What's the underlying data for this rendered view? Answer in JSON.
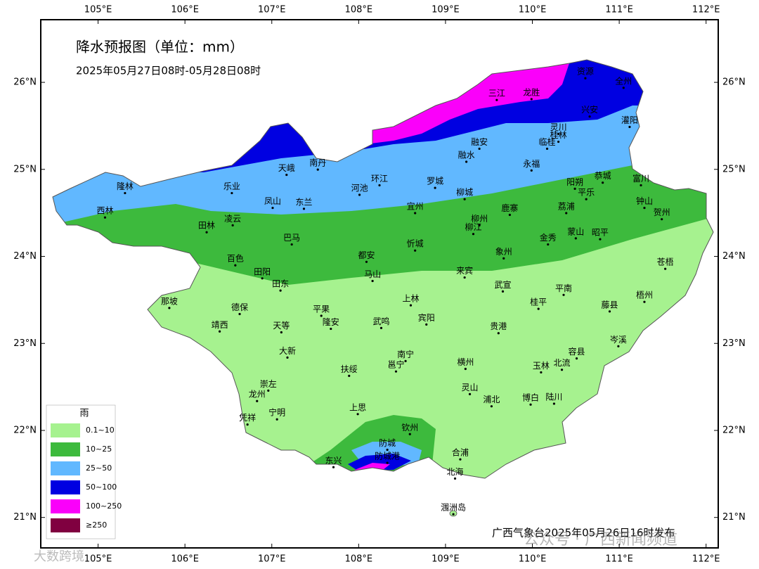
{
  "header": {
    "title": "降水预报图（单位：mm）",
    "subtitle": "2025年05月27日08时-05月28日08时"
  },
  "axes": {
    "xlim": [
      104.34,
      112.14
    ],
    "ylim": [
      20.65,
      26.72
    ],
    "xticks": [
      {
        "value": 105,
        "label": "105°E"
      },
      {
        "value": 106,
        "label": "106°E"
      },
      {
        "value": 107,
        "label": "107°E"
      },
      {
        "value": 108,
        "label": "108°E"
      },
      {
        "value": 109,
        "label": "109°E"
      },
      {
        "value": 110,
        "label": "110°E"
      },
      {
        "value": 111,
        "label": "111°E"
      },
      {
        "value": 112,
        "label": "112°E"
      }
    ],
    "yticks": [
      {
        "value": 21,
        "label": "21°N"
      },
      {
        "value": 22,
        "label": "22°N"
      },
      {
        "value": 23,
        "label": "23°N"
      },
      {
        "value": 24,
        "label": "24°N"
      },
      {
        "value": 25,
        "label": "25°N"
      },
      {
        "value": 26,
        "label": "26°N"
      }
    ]
  },
  "cities": [
    {
      "name": "隆林",
      "lon": 105.31,
      "lat": 24.8
    },
    {
      "name": "西林",
      "lon": 105.08,
      "lat": 24.52
    },
    {
      "name": "乐业",
      "lon": 106.54,
      "lat": 24.8
    },
    {
      "name": "天峨",
      "lon": 107.17,
      "lat": 25.01
    },
    {
      "name": "南丹",
      "lon": 107.53,
      "lat": 25.07
    },
    {
      "name": "凤山",
      "lon": 107.01,
      "lat": 24.63
    },
    {
      "name": "东兰",
      "lon": 107.37,
      "lat": 24.62
    },
    {
      "name": "河池",
      "lon": 108.01,
      "lat": 24.78
    },
    {
      "name": "环江",
      "lon": 108.24,
      "lat": 24.89
    },
    {
      "name": "罗城",
      "lon": 108.88,
      "lat": 24.86
    },
    {
      "name": "融安",
      "lon": 109.39,
      "lat": 25.31
    },
    {
      "name": "融水",
      "lon": 109.24,
      "lat": 25.16
    },
    {
      "name": "三江",
      "lon": 109.59,
      "lat": 25.87
    },
    {
      "name": "龙胜",
      "lon": 109.99,
      "lat": 25.88
    },
    {
      "name": "资源",
      "lon": 110.61,
      "lat": 26.12
    },
    {
      "name": "全州",
      "lon": 111.05,
      "lat": 26.01
    },
    {
      "name": "兴安",
      "lon": 110.66,
      "lat": 25.68
    },
    {
      "name": "灵川",
      "lon": 110.3,
      "lat": 25.48
    },
    {
      "name": "桂林",
      "lon": 110.3,
      "lat": 25.39
    },
    {
      "name": "临桂",
      "lon": 110.17,
      "lat": 25.31
    },
    {
      "name": "灌阳",
      "lon": 111.12,
      "lat": 25.56
    },
    {
      "name": "永福",
      "lon": 109.99,
      "lat": 25.06
    },
    {
      "name": "柳城",
      "lon": 109.22,
      "lat": 24.73
    },
    {
      "name": "宜州",
      "lon": 108.65,
      "lat": 24.57
    },
    {
      "name": "阳朔",
      "lon": 110.49,
      "lat": 24.85
    },
    {
      "name": "恭城",
      "lon": 110.81,
      "lat": 24.92
    },
    {
      "name": "平乐",
      "lon": 110.62,
      "lat": 24.73
    },
    {
      "name": "富川",
      "lon": 111.25,
      "lat": 24.89
    },
    {
      "name": "钟山",
      "lon": 111.29,
      "lat": 24.63
    },
    {
      "name": "荔浦",
      "lon": 110.39,
      "lat": 24.57
    },
    {
      "name": "贺州",
      "lon": 111.49,
      "lat": 24.5
    },
    {
      "name": "鹿寨",
      "lon": 109.74,
      "lat": 24.55
    },
    {
      "name": "柳州",
      "lon": 109.39,
      "lat": 24.43
    },
    {
      "name": "柳江",
      "lon": 109.32,
      "lat": 24.33
    },
    {
      "name": "金秀",
      "lon": 110.18,
      "lat": 24.21
    },
    {
      "name": "蒙山",
      "lon": 110.5,
      "lat": 24.28
    },
    {
      "name": "昭平",
      "lon": 110.78,
      "lat": 24.27
    },
    {
      "name": "田林",
      "lon": 106.25,
      "lat": 24.35
    },
    {
      "name": "凌云",
      "lon": 106.55,
      "lat": 24.43
    },
    {
      "name": "巴马",
      "lon": 107.23,
      "lat": 24.21
    },
    {
      "name": "都安",
      "lon": 108.09,
      "lat": 24.01
    },
    {
      "name": "忻城",
      "lon": 108.65,
      "lat": 24.14
    },
    {
      "name": "象州",
      "lon": 109.67,
      "lat": 24.05
    },
    {
      "name": "百色",
      "lon": 106.58,
      "lat": 23.97
    },
    {
      "name": "田阳",
      "lon": 106.89,
      "lat": 23.82
    },
    {
      "name": "田东",
      "lon": 107.1,
      "lat": 23.68
    },
    {
      "name": "马山",
      "lon": 108.16,
      "lat": 23.79
    },
    {
      "name": "来宾",
      "lon": 109.22,
      "lat": 23.83
    },
    {
      "name": "武宣",
      "lon": 109.66,
      "lat": 23.67
    },
    {
      "name": "平南",
      "lon": 110.36,
      "lat": 23.63
    },
    {
      "name": "苍梧",
      "lon": 111.53,
      "lat": 23.93
    },
    {
      "name": "梧州",
      "lon": 111.29,
      "lat": 23.55
    },
    {
      "name": "藤县",
      "lon": 110.89,
      "lat": 23.44
    },
    {
      "name": "那坡",
      "lon": 105.82,
      "lat": 23.48
    },
    {
      "name": "德保",
      "lon": 106.63,
      "lat": 23.41
    },
    {
      "name": "靖西",
      "lon": 106.4,
      "lat": 23.21
    },
    {
      "name": "天等",
      "lon": 107.11,
      "lat": 23.2
    },
    {
      "name": "平果",
      "lon": 107.57,
      "lat": 23.39
    },
    {
      "name": "隆安",
      "lon": 107.68,
      "lat": 23.24
    },
    {
      "name": "上林",
      "lon": 108.6,
      "lat": 23.51
    },
    {
      "name": "武鸣",
      "lon": 108.26,
      "lat": 23.25
    },
    {
      "name": "宾阳",
      "lon": 108.78,
      "lat": 23.29
    },
    {
      "name": "桂平",
      "lon": 110.07,
      "lat": 23.47
    },
    {
      "name": "贵港",
      "lon": 109.61,
      "lat": 23.19
    },
    {
      "name": "岑溪",
      "lon": 110.99,
      "lat": 23.04
    },
    {
      "name": "大新",
      "lon": 107.18,
      "lat": 22.91
    },
    {
      "name": "南宁",
      "lon": 108.54,
      "lat": 22.87
    },
    {
      "name": "邕宁",
      "lon": 108.43,
      "lat": 22.75
    },
    {
      "name": "扶绥",
      "lon": 107.89,
      "lat": 22.7
    },
    {
      "name": "横州",
      "lon": 109.23,
      "lat": 22.78
    },
    {
      "name": "玉林",
      "lon": 110.1,
      "lat": 22.74
    },
    {
      "name": "北流",
      "lon": 110.34,
      "lat": 22.77
    },
    {
      "name": "容县",
      "lon": 110.51,
      "lat": 22.9
    },
    {
      "name": "崇左",
      "lon": 106.96,
      "lat": 22.53
    },
    {
      "name": "龙州",
      "lon": 106.83,
      "lat": 22.41
    },
    {
      "name": "宁明",
      "lon": 107.06,
      "lat": 22.2
    },
    {
      "name": "凭祥",
      "lon": 106.72,
      "lat": 22.14
    },
    {
      "name": "灵山",
      "lon": 109.28,
      "lat": 22.49
    },
    {
      "name": "浦北",
      "lon": 109.53,
      "lat": 22.35
    },
    {
      "name": "博白",
      "lon": 109.98,
      "lat": 22.37
    },
    {
      "name": "陆川",
      "lon": 110.25,
      "lat": 22.38
    },
    {
      "name": "上思",
      "lon": 107.99,
      "lat": 22.26
    },
    {
      "name": "钦州",
      "lon": 108.59,
      "lat": 22.03
    },
    {
      "name": "防城",
      "lon": 108.33,
      "lat": 21.85
    },
    {
      "name": "东兴",
      "lon": 107.71,
      "lat": 21.65
    },
    {
      "name": "防城港",
      "lon": 108.33,
      "lat": 21.7
    },
    {
      "name": "合浦",
      "lon": 109.17,
      "lat": 21.74
    },
    {
      "name": "北海",
      "lon": 109.11,
      "lat": 21.52
    },
    {
      "name": "涠洲岛",
      "lon": 109.09,
      "lat": 21.11
    }
  ],
  "legend": {
    "title": "雨",
    "items": [
      {
        "label": "0.1~10",
        "color": "#a6f28f"
      },
      {
        "label": "10~25",
        "color": "#3dba3d"
      },
      {
        "label": "25~50",
        "color": "#61b8ff"
      },
      {
        "label": "50~100",
        "color": "#0000e1"
      },
      {
        "label": "100~250",
        "color": "#fa00fa"
      },
      {
        "label": "≥250",
        "color": "#800040"
      }
    ]
  },
  "footer": {
    "issuer": "广西气象台2025年05月26日16时发布",
    "watermark": "公众号 · 广西新闻频道",
    "watermark2": "大数跨境"
  }
}
